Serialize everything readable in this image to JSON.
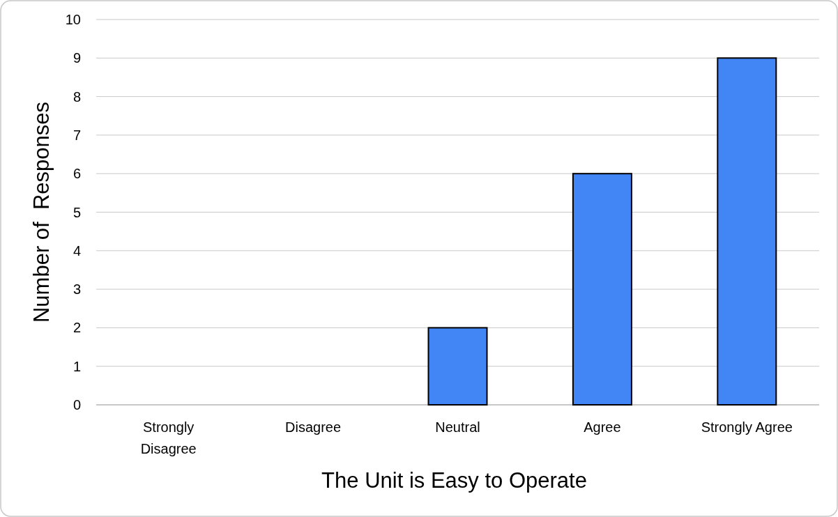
{
  "chart_data": {
    "type": "bar",
    "xlabel": "The Unit is Easy to Operate",
    "ylabel": "Number of  Responses",
    "categories": [
      "Strongly Disagree",
      "Disagree",
      "Neutral",
      "Agree",
      "Strongly Agree"
    ],
    "values": [
      0,
      0,
      2,
      6,
      9
    ],
    "color": "#4285f4",
    "ylim": [
      0,
      10
    ],
    "yticks": [
      0,
      1,
      2,
      3,
      4,
      5,
      6,
      7,
      8,
      9,
      10
    ],
    "grid": "y"
  }
}
